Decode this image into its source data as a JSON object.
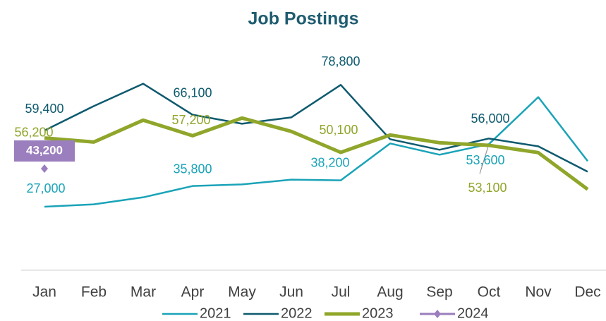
{
  "chart_data": {
    "type": "line",
    "title": "Job Postings",
    "categories": [
      "Jan",
      "Feb",
      "Mar",
      "Apr",
      "May",
      "Jun",
      "Jul",
      "Aug",
      "Sep",
      "Oct",
      "Nov",
      "Dec"
    ],
    "ylim": [
      0,
      90000
    ],
    "series": [
      {
        "name": "2021",
        "color": "#1aa3b8",
        "values": [
          27000,
          28000,
          31000,
          35800,
          36500,
          38500,
          38200,
          53900,
          49100,
          53600,
          73600,
          46400
        ],
        "value_labels": [
          "27,000",
          null,
          null,
          "35,800",
          null,
          null,
          "38,200",
          null,
          null,
          "53,600",
          null,
          null
        ]
      },
      {
        "name": "2022",
        "color": "#0e5a6e",
        "values": [
          59400,
          69800,
          79300,
          66100,
          62300,
          65000,
          78800,
          55700,
          51200,
          56000,
          52700,
          41900
        ],
        "value_labels": [
          "59,400",
          null,
          null,
          "66,100",
          null,
          null,
          "78,800",
          null,
          null,
          "56,000",
          null,
          null
        ]
      },
      {
        "name": "2023",
        "color": "#8fa62a",
        "values": [
          56200,
          54500,
          63800,
          57200,
          64700,
          59000,
          50100,
          57500,
          54200,
          53100,
          50000,
          34400
        ],
        "value_labels": [
          "56,200",
          null,
          null,
          "57,200",
          null,
          null,
          "50,100",
          null,
          null,
          "53,100",
          null,
          null
        ]
      },
      {
        "name": "2024",
        "color": "#9b7ebd",
        "values": [
          43200,
          null,
          null,
          null,
          null,
          null,
          null,
          null,
          null,
          null,
          null,
          null
        ],
        "value_labels": [
          "43,200",
          null,
          null,
          null,
          null,
          null,
          null,
          null,
          null,
          null,
          null,
          null
        ]
      }
    ]
  }
}
